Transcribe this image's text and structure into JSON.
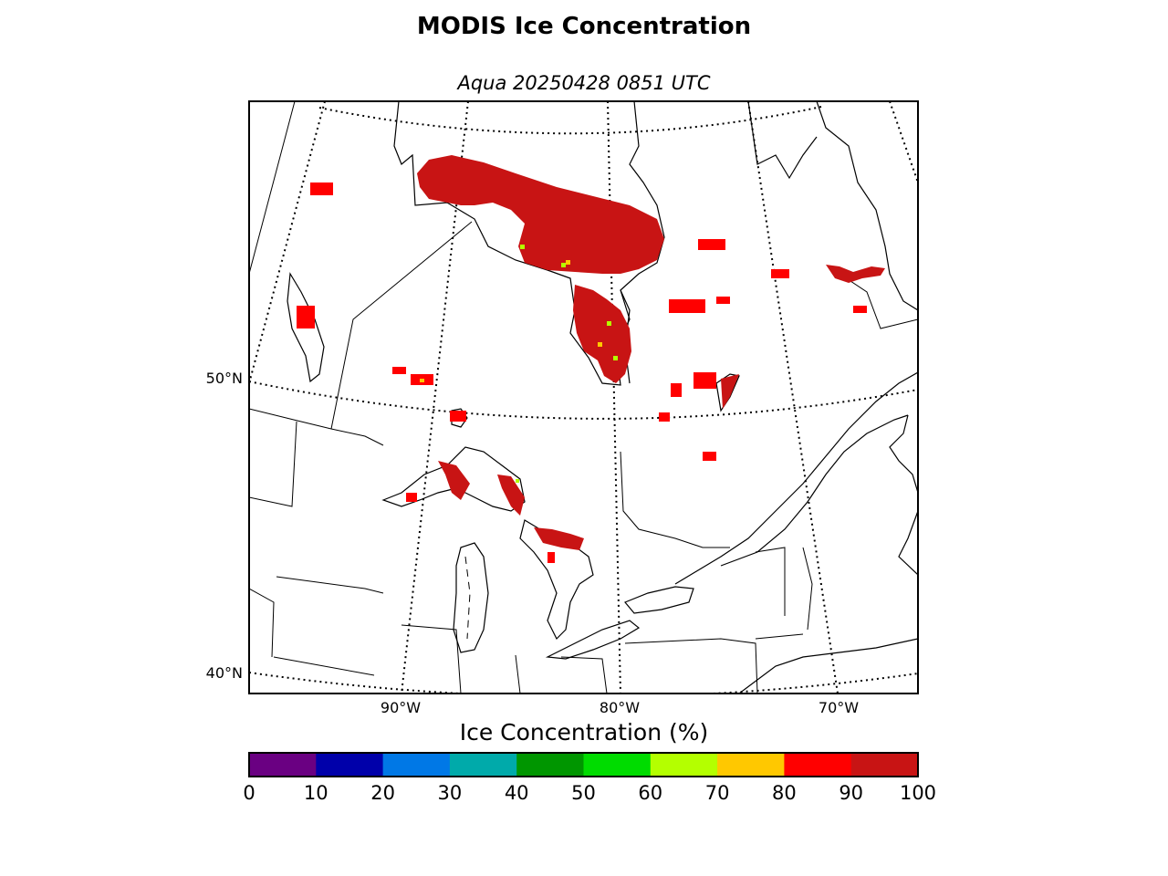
{
  "title": "MODIS Ice Concentration",
  "subtitle": "Aqua 20250428 0851 UTC",
  "lat_labels": [
    "50°N",
    "40°N"
  ],
  "lon_labels": [
    "90°W",
    "80°W",
    "70°W"
  ],
  "colorbar": {
    "title": "Ice Concentration (%)",
    "ticks": [
      "0",
      "10",
      "20",
      "30",
      "40",
      "50",
      "60",
      "70",
      "80",
      "90",
      "100"
    ],
    "colors": [
      "#6a0082",
      "#0000aa",
      "#0078e6",
      "#00aaaa",
      "#009600",
      "#00dc00",
      "#b4ff00",
      "#ffc800",
      "#ff0000",
      "#c81414"
    ]
  }
}
